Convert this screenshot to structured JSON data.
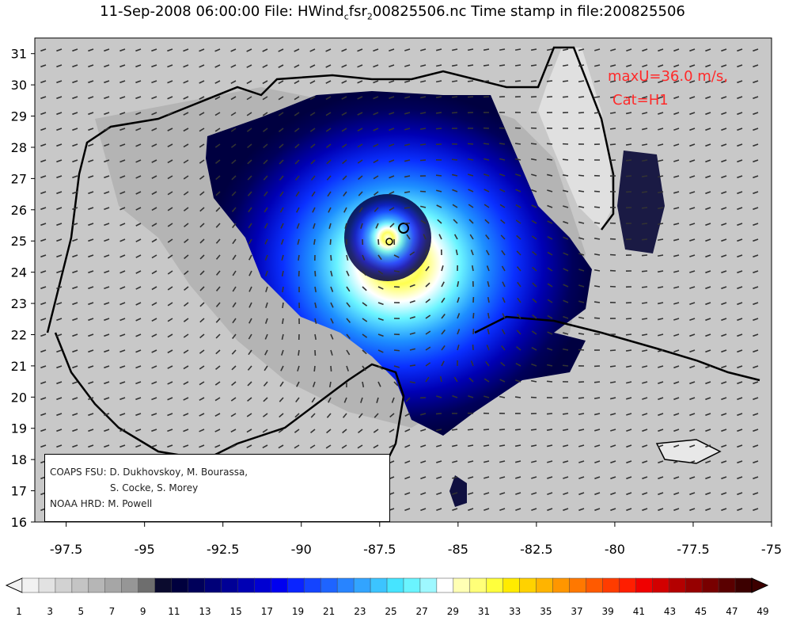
{
  "title": {
    "prefix": "11-Sep-2008 06:00:00 File: HWind",
    "sub1": "c",
    "mid": "fsr",
    "sub2": "2",
    "suffix": "00825506.nc Time stamp in file:200825506"
  },
  "annotation": {
    "max_wind": "maxU=36.0 m/s,",
    "category": "Cat=H1"
  },
  "credits": {
    "line1": "COAPS FSU: D. Dukhovskoy, M. Bourassa,",
    "line2": "S. Cocke, S. Morey",
    "line3": "NOAA HRD:  M. Powell"
  },
  "axes": {
    "x_ticks": [
      "-97.5",
      "-95",
      "-92.5",
      "-90",
      "-87.5",
      "-85",
      "-82.5",
      "-80",
      "-77.5",
      "-75"
    ],
    "y_ticks": [
      "31",
      "30",
      "29",
      "28",
      "27",
      "26",
      "25",
      "24",
      "23",
      "22",
      "21",
      "20",
      "19",
      "18",
      "17",
      "16"
    ],
    "x_range": [
      -98.5,
      -75
    ],
    "y_range": [
      16,
      31.5
    ]
  },
  "colorbar": {
    "labels": [
      "1",
      "3",
      "5",
      "7",
      "9",
      "11",
      "13",
      "15",
      "17",
      "19",
      "21",
      "23",
      "25",
      "27",
      "29",
      "31",
      "33",
      "35",
      "37",
      "39",
      "41",
      "43",
      "45",
      "47",
      "49"
    ],
    "colors": [
      "#f2f2f2",
      "#e2e2e2",
      "#d2d2d2",
      "#c4c4c4",
      "#b6b6b6",
      "#a6a6a6",
      "#969696",
      "#6e6e6e",
      "#0b0b2e",
      "#00003e",
      "#00005a",
      "#000078",
      "#000096",
      "#0000b4",
      "#0000d2",
      "#0000f0",
      "#0a24ff",
      "#1444ff",
      "#1e64ff",
      "#2884ff",
      "#32a4ff",
      "#3cc4ff",
      "#46e4ff",
      "#6af4ff",
      "#9ef8ff",
      "#ffffff",
      "#ffffb4",
      "#ffff78",
      "#ffff3c",
      "#ffeb00",
      "#ffd200",
      "#ffb400",
      "#ff9600",
      "#ff7800",
      "#ff5a00",
      "#ff3c00",
      "#ff1e00",
      "#f00000",
      "#d20000",
      "#b40000",
      "#960000",
      "#780000",
      "#5a0000",
      "#3c0000"
    ]
  },
  "storm": {
    "center": [
      -86.7,
      25.0
    ],
    "eye_marker": [
      -86.2,
      25.4
    ]
  }
}
